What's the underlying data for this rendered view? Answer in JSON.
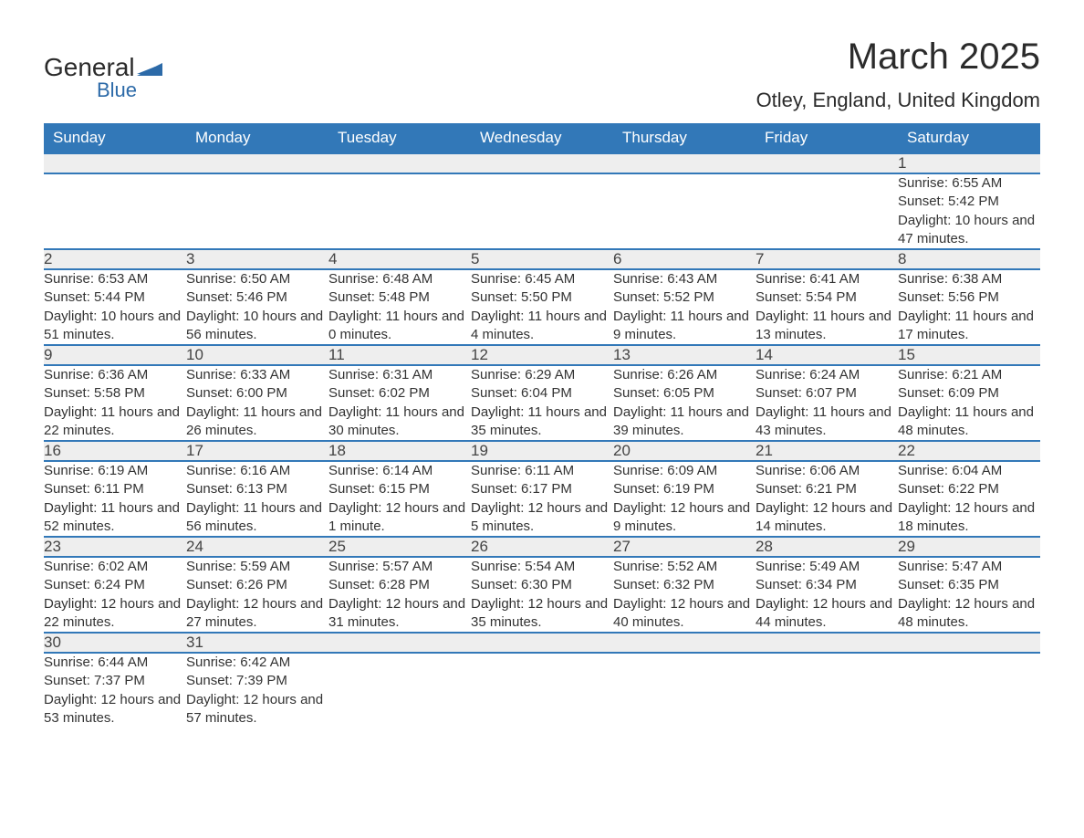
{
  "brand": {
    "name": "General",
    "sub": "Blue"
  },
  "title": "March 2025",
  "location": "Otley, England, United Kingdom",
  "colors": {
    "header_bg": "#3278b8",
    "header_fg": "#ffffff",
    "daynum_bg": "#eeeeee",
    "border": "#3278b8",
    "text": "#333333"
  },
  "typography": {
    "title_fontsize": 40,
    "location_fontsize": 22,
    "header_fontsize": 17,
    "daynum_fontsize": 17,
    "body_fontsize": 15
  },
  "weekdays": [
    "Sunday",
    "Monday",
    "Tuesday",
    "Wednesday",
    "Thursday",
    "Friday",
    "Saturday"
  ],
  "weeks": [
    [
      null,
      null,
      null,
      null,
      null,
      null,
      {
        "n": "1",
        "sr": "Sunrise: 6:55 AM",
        "ss": "Sunset: 5:42 PM",
        "dl": "Daylight: 10 hours and 47 minutes."
      }
    ],
    [
      {
        "n": "2",
        "sr": "Sunrise: 6:53 AM",
        "ss": "Sunset: 5:44 PM",
        "dl": "Daylight: 10 hours and 51 minutes."
      },
      {
        "n": "3",
        "sr": "Sunrise: 6:50 AM",
        "ss": "Sunset: 5:46 PM",
        "dl": "Daylight: 10 hours and 56 minutes."
      },
      {
        "n": "4",
        "sr": "Sunrise: 6:48 AM",
        "ss": "Sunset: 5:48 PM",
        "dl": "Daylight: 11 hours and 0 minutes."
      },
      {
        "n": "5",
        "sr": "Sunrise: 6:45 AM",
        "ss": "Sunset: 5:50 PM",
        "dl": "Daylight: 11 hours and 4 minutes."
      },
      {
        "n": "6",
        "sr": "Sunrise: 6:43 AM",
        "ss": "Sunset: 5:52 PM",
        "dl": "Daylight: 11 hours and 9 minutes."
      },
      {
        "n": "7",
        "sr": "Sunrise: 6:41 AM",
        "ss": "Sunset: 5:54 PM",
        "dl": "Daylight: 11 hours and 13 minutes."
      },
      {
        "n": "8",
        "sr": "Sunrise: 6:38 AM",
        "ss": "Sunset: 5:56 PM",
        "dl": "Daylight: 11 hours and 17 minutes."
      }
    ],
    [
      {
        "n": "9",
        "sr": "Sunrise: 6:36 AM",
        "ss": "Sunset: 5:58 PM",
        "dl": "Daylight: 11 hours and 22 minutes."
      },
      {
        "n": "10",
        "sr": "Sunrise: 6:33 AM",
        "ss": "Sunset: 6:00 PM",
        "dl": "Daylight: 11 hours and 26 minutes."
      },
      {
        "n": "11",
        "sr": "Sunrise: 6:31 AM",
        "ss": "Sunset: 6:02 PM",
        "dl": "Daylight: 11 hours and 30 minutes."
      },
      {
        "n": "12",
        "sr": "Sunrise: 6:29 AM",
        "ss": "Sunset: 6:04 PM",
        "dl": "Daylight: 11 hours and 35 minutes."
      },
      {
        "n": "13",
        "sr": "Sunrise: 6:26 AM",
        "ss": "Sunset: 6:05 PM",
        "dl": "Daylight: 11 hours and 39 minutes."
      },
      {
        "n": "14",
        "sr": "Sunrise: 6:24 AM",
        "ss": "Sunset: 6:07 PM",
        "dl": "Daylight: 11 hours and 43 minutes."
      },
      {
        "n": "15",
        "sr": "Sunrise: 6:21 AM",
        "ss": "Sunset: 6:09 PM",
        "dl": "Daylight: 11 hours and 48 minutes."
      }
    ],
    [
      {
        "n": "16",
        "sr": "Sunrise: 6:19 AM",
        "ss": "Sunset: 6:11 PM",
        "dl": "Daylight: 11 hours and 52 minutes."
      },
      {
        "n": "17",
        "sr": "Sunrise: 6:16 AM",
        "ss": "Sunset: 6:13 PM",
        "dl": "Daylight: 11 hours and 56 minutes."
      },
      {
        "n": "18",
        "sr": "Sunrise: 6:14 AM",
        "ss": "Sunset: 6:15 PM",
        "dl": "Daylight: 12 hours and 1 minute."
      },
      {
        "n": "19",
        "sr": "Sunrise: 6:11 AM",
        "ss": "Sunset: 6:17 PM",
        "dl": "Daylight: 12 hours and 5 minutes."
      },
      {
        "n": "20",
        "sr": "Sunrise: 6:09 AM",
        "ss": "Sunset: 6:19 PM",
        "dl": "Daylight: 12 hours and 9 minutes."
      },
      {
        "n": "21",
        "sr": "Sunrise: 6:06 AM",
        "ss": "Sunset: 6:21 PM",
        "dl": "Daylight: 12 hours and 14 minutes."
      },
      {
        "n": "22",
        "sr": "Sunrise: 6:04 AM",
        "ss": "Sunset: 6:22 PM",
        "dl": "Daylight: 12 hours and 18 minutes."
      }
    ],
    [
      {
        "n": "23",
        "sr": "Sunrise: 6:02 AM",
        "ss": "Sunset: 6:24 PM",
        "dl": "Daylight: 12 hours and 22 minutes."
      },
      {
        "n": "24",
        "sr": "Sunrise: 5:59 AM",
        "ss": "Sunset: 6:26 PM",
        "dl": "Daylight: 12 hours and 27 minutes."
      },
      {
        "n": "25",
        "sr": "Sunrise: 5:57 AM",
        "ss": "Sunset: 6:28 PM",
        "dl": "Daylight: 12 hours and 31 minutes."
      },
      {
        "n": "26",
        "sr": "Sunrise: 5:54 AM",
        "ss": "Sunset: 6:30 PM",
        "dl": "Daylight: 12 hours and 35 minutes."
      },
      {
        "n": "27",
        "sr": "Sunrise: 5:52 AM",
        "ss": "Sunset: 6:32 PM",
        "dl": "Daylight: 12 hours and 40 minutes."
      },
      {
        "n": "28",
        "sr": "Sunrise: 5:49 AM",
        "ss": "Sunset: 6:34 PM",
        "dl": "Daylight: 12 hours and 44 minutes."
      },
      {
        "n": "29",
        "sr": "Sunrise: 5:47 AM",
        "ss": "Sunset: 6:35 PM",
        "dl": "Daylight: 12 hours and 48 minutes."
      }
    ],
    [
      {
        "n": "30",
        "sr": "Sunrise: 6:44 AM",
        "ss": "Sunset: 7:37 PM",
        "dl": "Daylight: 12 hours and 53 minutes."
      },
      {
        "n": "31",
        "sr": "Sunrise: 6:42 AM",
        "ss": "Sunset: 7:39 PM",
        "dl": "Daylight: 12 hours and 57 minutes."
      },
      null,
      null,
      null,
      null,
      null
    ]
  ]
}
